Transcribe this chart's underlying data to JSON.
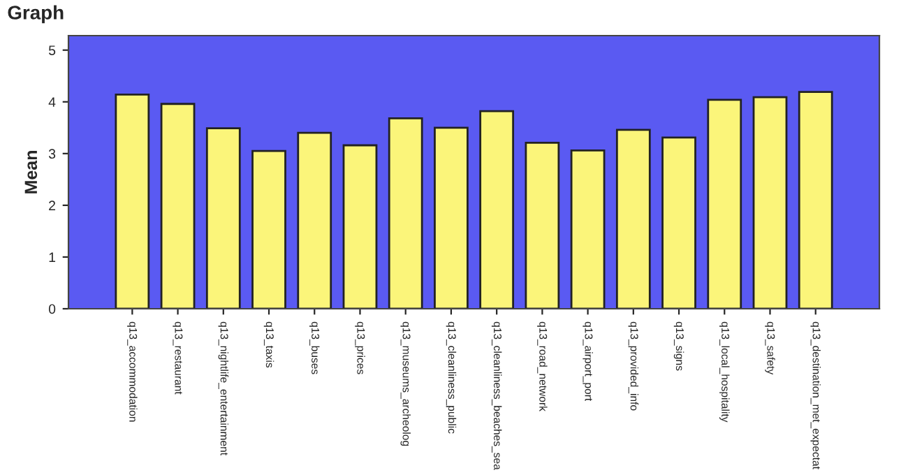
{
  "chart_data": {
    "type": "bar",
    "title": "Graph",
    "ylabel": "Mean",
    "categories": [
      "q13_accommodation",
      "q13_restaurant",
      "q13_nightlife_entertainment",
      "q13_taxis",
      "q13_buses",
      "q13_prices",
      "q13_museums_archeolog",
      "q13_cleanliness_public",
      "q13_cleanliness_beaches_sea",
      "q13_road_network",
      "q13_airport_port",
      "q13_provided_info",
      "q13_signs",
      "q13_local_hospitality",
      "q13_safety",
      "q13_destination_met_expectat"
    ],
    "values": [
      4.14,
      3.96,
      3.49,
      3.05,
      3.4,
      3.16,
      3.68,
      3.5,
      3.82,
      3.21,
      3.06,
      3.46,
      3.31,
      4.04,
      4.09,
      4.19
    ],
    "color": "#fbf57a",
    "ylim": [
      0,
      5.28
    ],
    "yticks": [
      0,
      1,
      2,
      3,
      4,
      5
    ]
  }
}
